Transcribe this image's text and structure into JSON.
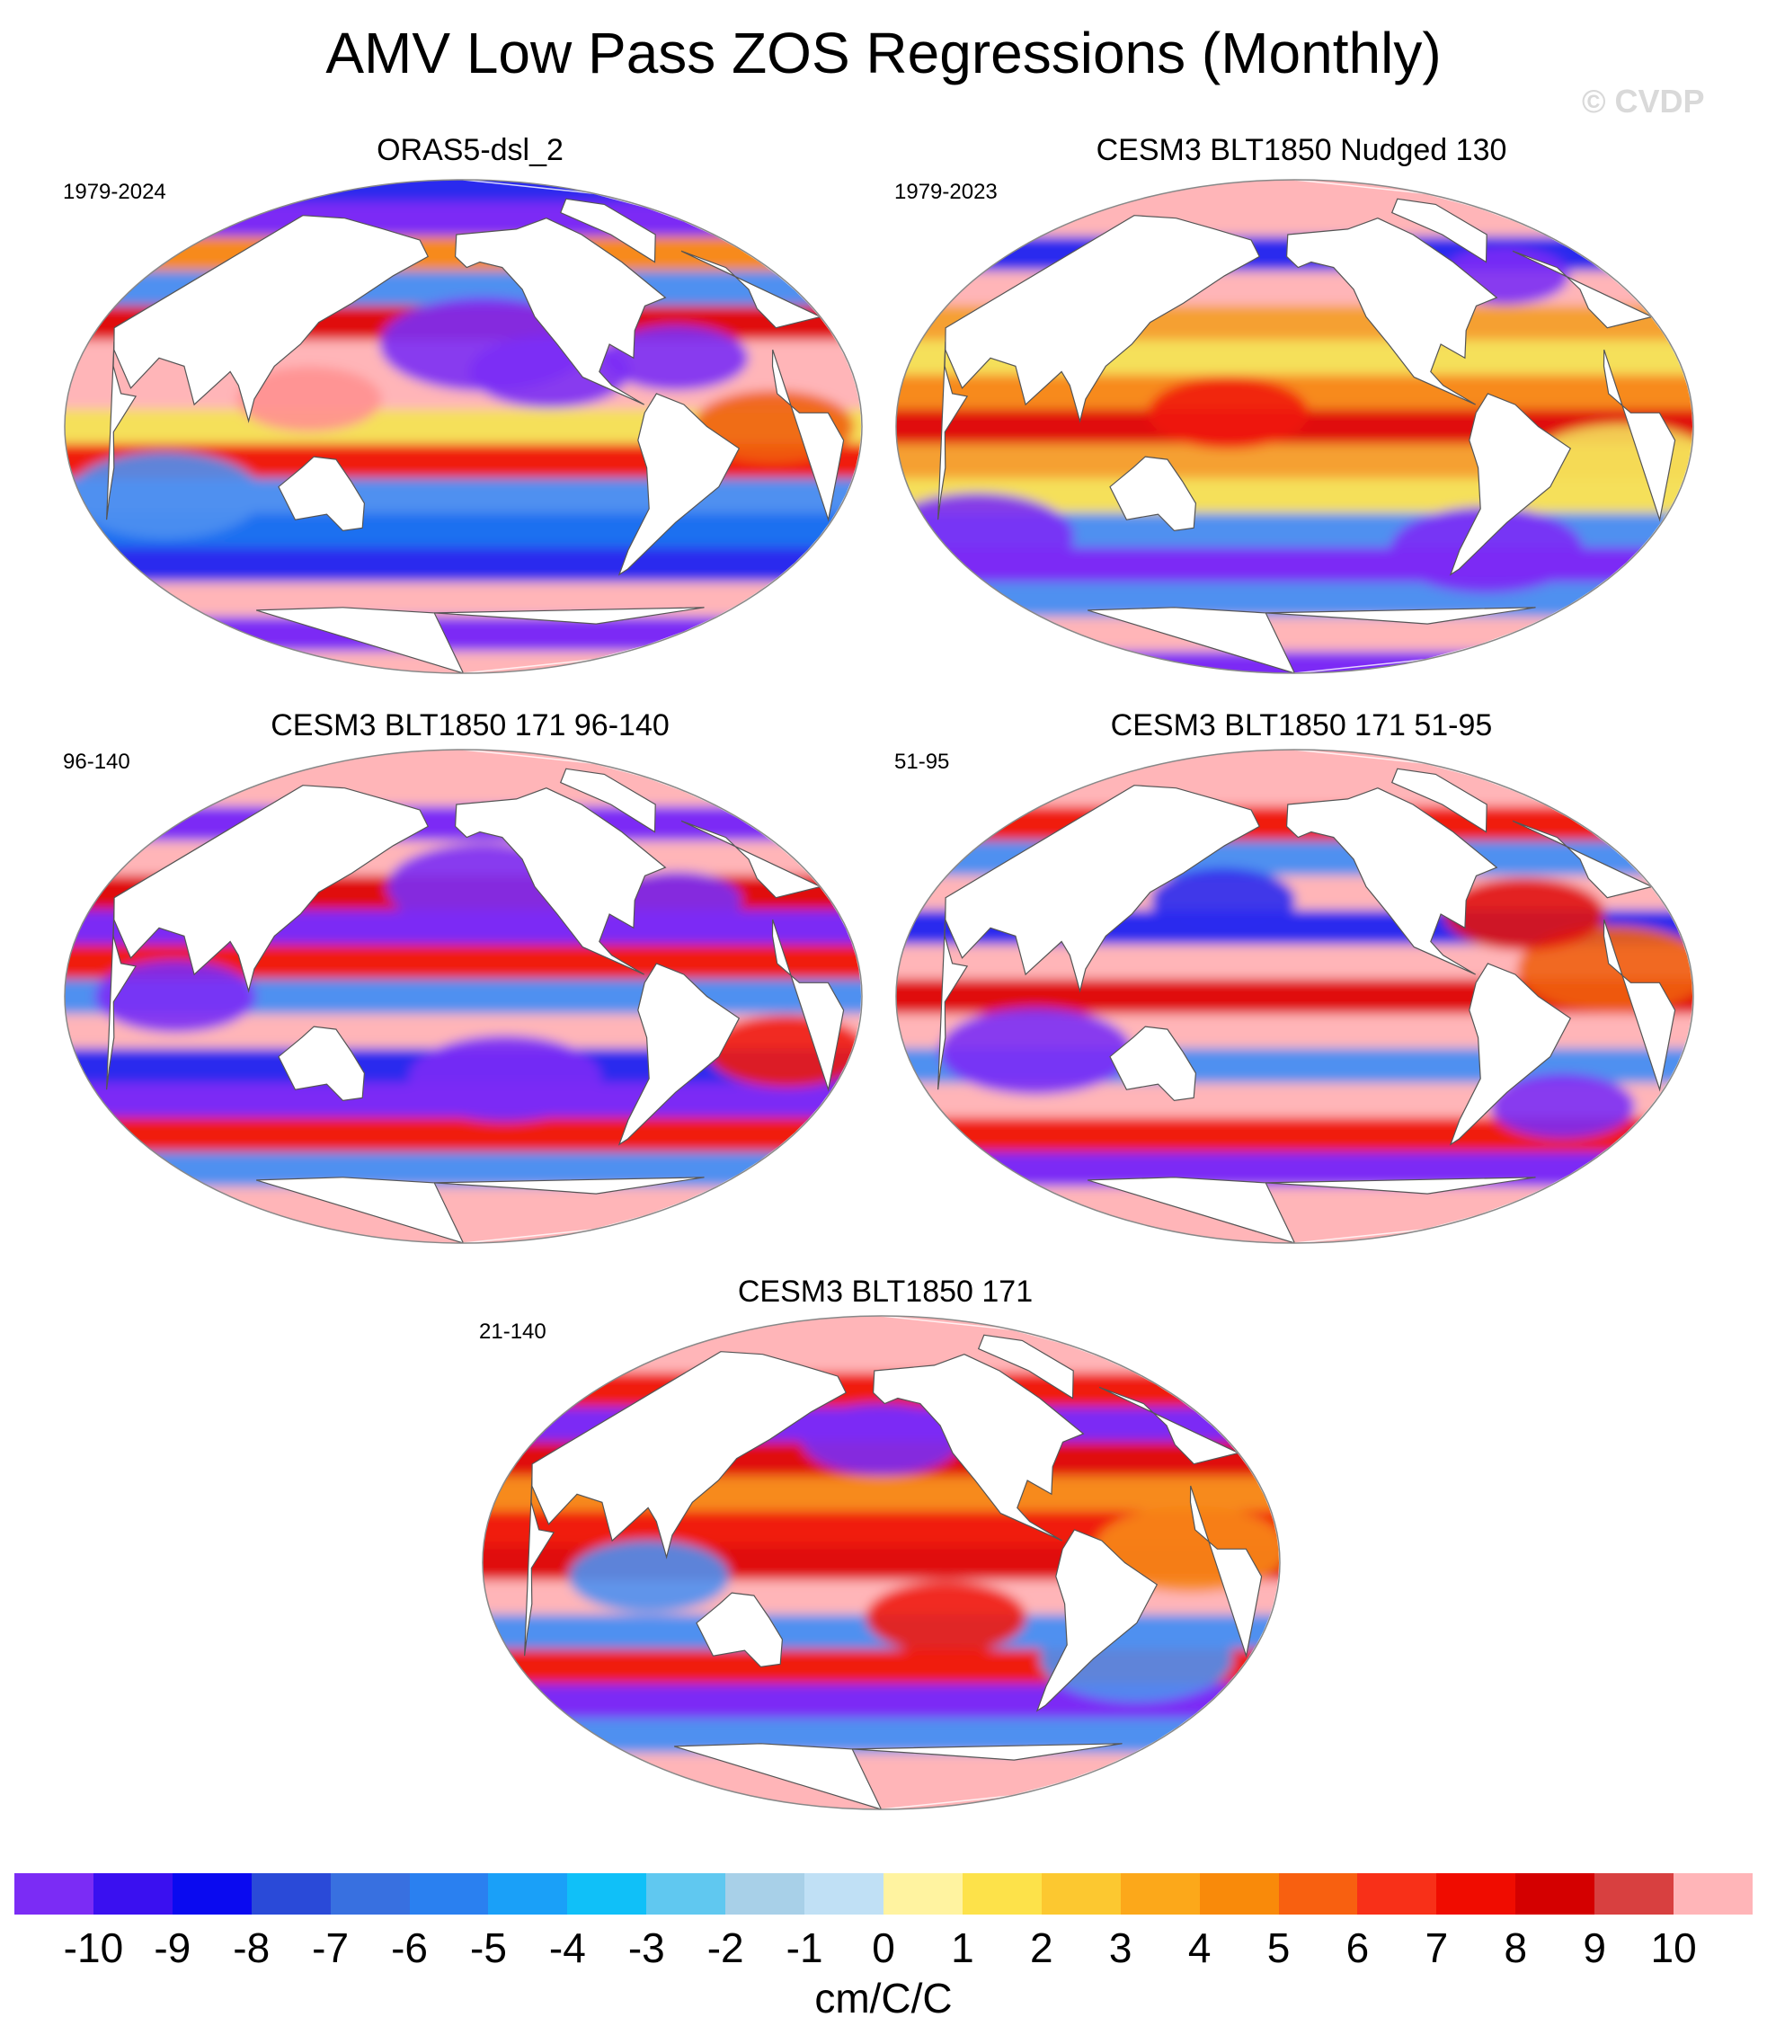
{
  "title": "AMV Low Pass ZOS Regressions (Monthly)",
  "watermark": "© CVDP",
  "panels": [
    {
      "title": "ORAS5-dsl_2",
      "period": "1979-2024",
      "bands": [
        "#2a2aee",
        "#7b2cf5",
        "#f78a1a",
        "#4f90f0",
        "#e01010",
        "#ffb5b8",
        "#ffb5b8",
        "#f5e05a",
        "#f01a10",
        "#4f90f0",
        "#1a6ff0",
        "#2a2aee",
        "#ffb5b8",
        "#7b2cf5",
        "#ffb5b8"
      ],
      "blobs": [
        {
          "lat": 30,
          "lon": -150,
          "r": 0.13,
          "c": "#7b2cf5"
        },
        {
          "lat": 20,
          "lon": -120,
          "r": 0.1,
          "c": "#7b2cf5"
        },
        {
          "lat": 25,
          "lon": -60,
          "r": 0.09,
          "c": "#7b2cf5"
        },
        {
          "lat": 0,
          "lon": -20,
          "r": 0.1,
          "c": "#f06010"
        },
        {
          "lat": -25,
          "lon": 60,
          "r": 0.12,
          "c": "#4f90f0"
        },
        {
          "lat": 10,
          "lon": 130,
          "r": 0.09,
          "c": "#ff9090"
        }
      ]
    },
    {
      "title": "CESM3 BLT1850 Nudged 130",
      "period": "1979-2023",
      "bands": [
        "#ffb5b8",
        "#ffb5b8",
        "#2a2aee",
        "#ffb5b8",
        "#f5a030",
        "#f5e05a",
        "#f78a1a",
        "#e01010",
        "#f5a030",
        "#f5e05a",
        "#4f90f0",
        "#7b2cf5",
        "#4f90f0",
        "#ffb5b8",
        "#7b2cf5"
      ],
      "blobs": [
        {
          "lat": 55,
          "lon": -40,
          "r": 0.08,
          "c": "#7b2cf5"
        },
        {
          "lat": -40,
          "lon": 40,
          "r": 0.12,
          "c": "#7b2cf5"
        },
        {
          "lat": -45,
          "lon": -60,
          "r": 0.12,
          "c": "#7b2cf5"
        },
        {
          "lat": 5,
          "lon": 170,
          "r": 0.1,
          "c": "#f01a10"
        },
        {
          "lat": -15,
          "lon": -10,
          "r": 0.12,
          "c": "#f5e05a"
        }
      ]
    },
    {
      "title": "CESM3 BLT1850 171 96-140",
      "period": "96-140",
      "bands": [
        "#ffb5b8",
        "#ffb5b8",
        "#7b2cf5",
        "#ffb5b8",
        "#e01010",
        "#7b2cf5",
        "#f01a10",
        "#4f90f0",
        "#ffb5b8",
        "#2a2aee",
        "#7b2cf5",
        "#f01a10",
        "#4f90f0",
        "#ffb5b8",
        "#ffb5b8"
      ],
      "blobs": [
        {
          "lat": 40,
          "lon": -150,
          "r": 0.12,
          "c": "#7b2cf5"
        },
        {
          "lat": 35,
          "lon": -55,
          "r": 0.08,
          "c": "#7b2cf5"
        },
        {
          "lat": -30,
          "lon": -140,
          "r": 0.12,
          "c": "#7b2cf5"
        },
        {
          "lat": 0,
          "lon": 70,
          "r": 0.1,
          "c": "#7b2cf5"
        },
        {
          "lat": -20,
          "lon": -10,
          "r": 0.1,
          "c": "#f01a10"
        }
      ]
    },
    {
      "title": "CESM3 BLT1850 171 51-95",
      "period": "51-95",
      "bands": [
        "#ffb5b8",
        "#ffb5b8",
        "#f01a10",
        "#4f90f0",
        "#ffb5b8",
        "#2a2aee",
        "#ffb5b8",
        "#e01010",
        "#ffb5b8",
        "#4f90f0",
        "#ffb5b8",
        "#f01a10",
        "#7b2cf5",
        "#ffb5b8",
        "#ffb5b8"
      ],
      "blobs": [
        {
          "lat": -20,
          "lon": 80,
          "r": 0.12,
          "c": "#7b2cf5"
        },
        {
          "lat": -40,
          "lon": -25,
          "r": 0.09,
          "c": "#7b2cf5"
        },
        {
          "lat": 10,
          "lon": -15,
          "r": 0.12,
          "c": "#f06010"
        },
        {
          "lat": 30,
          "lon": -50,
          "r": 0.1,
          "c": "#e01010"
        },
        {
          "lat": 35,
          "lon": 165,
          "r": 0.09,
          "c": "#2a2aee"
        }
      ]
    },
    {
      "title": "CESM3 BLT1850 171",
      "period": "21-140",
      "bands": [
        "#ffb5b8",
        "#ffb5b8",
        "#f01a10",
        "#7b2cf5",
        "#e01010",
        "#f78a1a",
        "#f01a10",
        "#e01010",
        "#ffb5b8",
        "#4f90f0",
        "#f01a10",
        "#7b2cf5",
        "#4f90f0",
        "#ffb5b8",
        "#ffb5b8"
      ],
      "blobs": [
        {
          "lat": 45,
          "lon": -160,
          "r": 0.1,
          "c": "#7b2cf5"
        },
        {
          "lat": -35,
          "lon": -35,
          "r": 0.12,
          "c": "#4f90f0"
        },
        {
          "lat": 5,
          "lon": -20,
          "r": 0.12,
          "c": "#f78a1a"
        },
        {
          "lat": -5,
          "lon": 95,
          "r": 0.1,
          "c": "#4f90f0"
        },
        {
          "lat": -20,
          "lon": -130,
          "r": 0.1,
          "c": "#f01a10"
        }
      ]
    }
  ],
  "colorbar": {
    "colors": [
      "#7b2cf5",
      "#3a10f0",
      "#0a0af0",
      "#2a4ad8",
      "#3870e0",
      "#2a80f0",
      "#1aa0f8",
      "#10c0f8",
      "#60c8f0",
      "#a8d0e8",
      "#c0e0f5",
      "#fff3a0",
      "#fde24a",
      "#fcc830",
      "#fca81a",
      "#f98a0a",
      "#f86010",
      "#f83018",
      "#f00c00",
      "#d40000",
      "#d84040",
      "#ffb5b8"
    ],
    "labels": [
      "-10",
      "-9",
      "-8",
      "-7",
      "-6",
      "-5",
      "-4",
      "-3",
      "-2",
      "-1",
      "0",
      "1",
      "2",
      "3",
      "4",
      "5",
      "6",
      "7",
      "8",
      "9",
      "10"
    ],
    "units": "cm/C/C"
  }
}
